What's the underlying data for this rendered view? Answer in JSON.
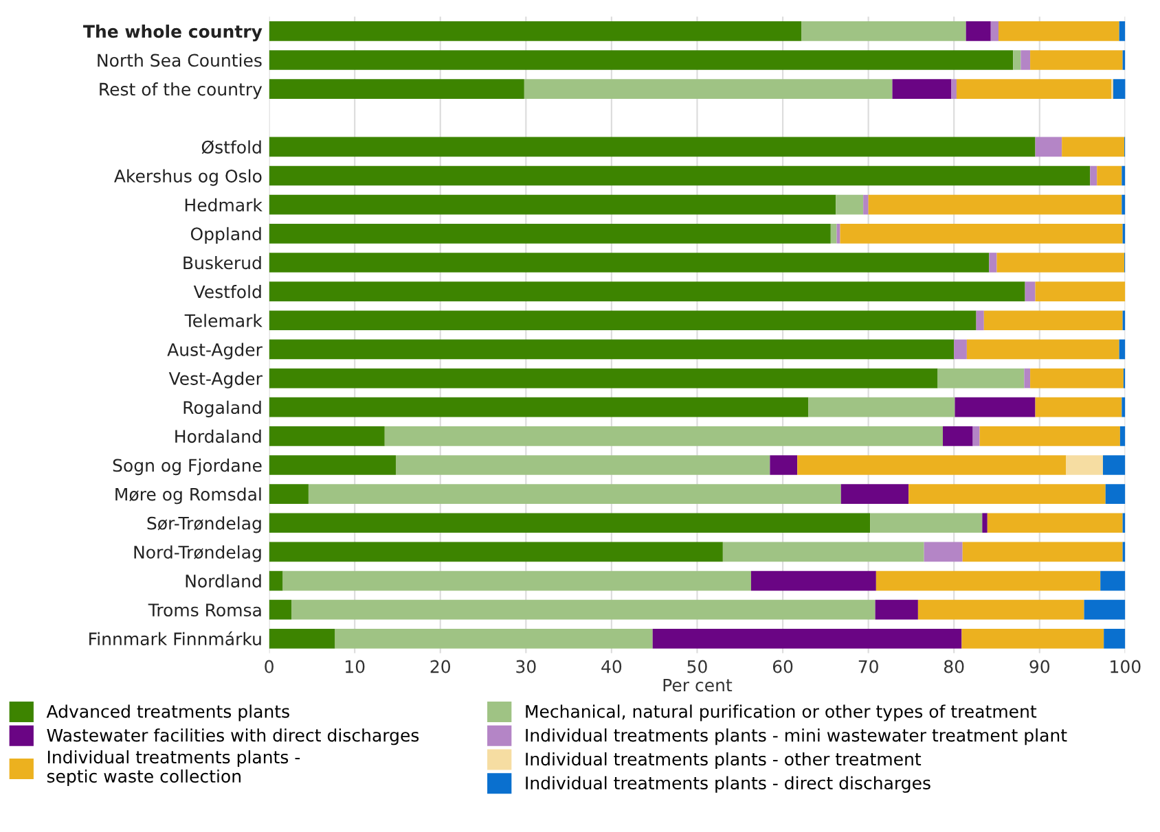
{
  "chart_data": {
    "type": "bar",
    "orientation": "horizontal",
    "stacked": true,
    "xlabel": "Per cent",
    "categories": [
      "The whole country",
      "North Sea Counties",
      "Rest of the country",
      null,
      "Østfold",
      "Akershus og Oslo",
      "Hedmark",
      "Oppland",
      "Buskerud",
      "Vestfold",
      "Telemark",
      "Aust-Agder",
      "Vest-Agder",
      "Rogaland",
      "Hordaland",
      "Sogn og Fjordane",
      "Møre og Romsdal",
      "Sør-Trøndelag",
      "Nord-Trøndelag",
      "Nordland",
      "Troms Romsa",
      "Finnmark Finnmárku"
    ],
    "series": [
      {
        "name": "Advanced treatments plants",
        "color": "#3d8400",
        "values": [
          62.2,
          86.9,
          29.8,
          null,
          89.5,
          95.9,
          66.2,
          65.6,
          84.1,
          88.3,
          82.6,
          80.0,
          78.1,
          63.0,
          13.5,
          14.8,
          4.6,
          70.2,
          53.0,
          1.6,
          2.6,
          7.7
        ]
      },
      {
        "name": "Mechanical, natural purification or other types of treatment",
        "color": "#9fc384",
        "values": [
          19.2,
          0.9,
          43.0,
          null,
          0,
          0,
          3.2,
          0.7,
          0,
          0,
          0,
          0,
          10.1,
          17.1,
          65.2,
          43.7,
          62.2,
          13.1,
          23.5,
          54.7,
          68.2,
          37.1
        ]
      },
      {
        "name": "Wastewater facilities with direct discharges",
        "color": "#6a0584",
        "values": [
          2.9,
          0,
          6.9,
          null,
          0,
          0,
          0,
          0,
          0,
          0,
          0,
          0,
          0,
          9.4,
          3.5,
          3.2,
          7.9,
          0.6,
          0,
          14.6,
          5.0,
          36.1
        ]
      },
      {
        "name": "Individual treatments plants - mini wastewater treatment plant",
        "color": "#b485c6",
        "values": [
          0.9,
          1.1,
          0.6,
          null,
          3.1,
          0.8,
          0.6,
          0.4,
          0.9,
          1.2,
          0.9,
          1.5,
          0.7,
          0,
          0.8,
          0,
          0,
          0,
          4.5,
          0,
          0,
          0
        ]
      },
      {
        "name": "Individual treatments plants -\nseptic waste collection",
        "color": "#ecb11f",
        "values": [
          14.1,
          10.8,
          18.1,
          null,
          7.3,
          2.9,
          29.6,
          33.0,
          14.9,
          10.5,
          16.2,
          17.8,
          10.9,
          10.1,
          16.4,
          31.4,
          23.0,
          15.8,
          18.7,
          26.2,
          19.4,
          16.6
        ]
      },
      {
        "name": "Individual treatments plants - other treatment",
        "color": "#f6dda2",
        "values": [
          0,
          0,
          0.2,
          null,
          0,
          0,
          0,
          0,
          0,
          0,
          0,
          0,
          0,
          0,
          0,
          4.3,
          0,
          0,
          0,
          0,
          0,
          0
        ]
      },
      {
        "name": "Individual treatments plants - direct discharges",
        "color": "#0a70cf",
        "values": [
          0.7,
          0.3,
          1.6,
          null,
          0.1,
          0.4,
          0.4,
          0.3,
          0.1,
          0,
          0.3,
          0.7,
          0.2,
          0.4,
          0.6,
          2.6,
          2.3,
          0.3,
          0.3,
          2.9,
          4.8,
          2.5
        ]
      }
    ],
    "xlim": [
      0,
      100
    ],
    "xticks": [
      0,
      10,
      20,
      30,
      40,
      50,
      60,
      70,
      80,
      90,
      100
    ],
    "grid": "x",
    "legend": "bottom"
  }
}
